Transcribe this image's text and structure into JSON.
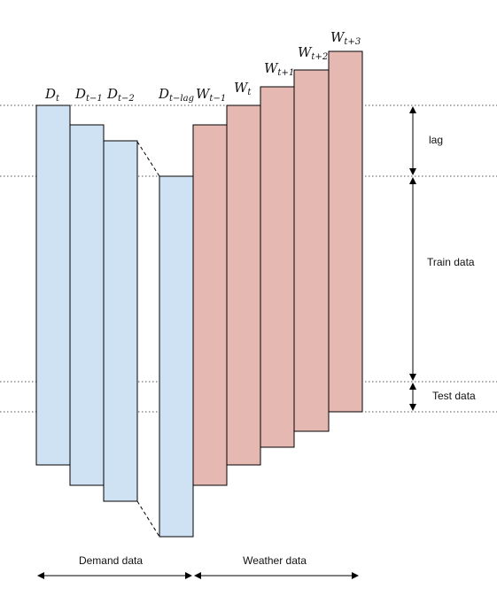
{
  "colors": {
    "demand_fill": "#cfe2f3",
    "weather_fill": "#e6b8b2",
    "stroke": "#000000"
  },
  "demand_bars": [
    {
      "base": "D",
      "sub": "t"
    },
    {
      "base": "D",
      "sub": "t−1"
    },
    {
      "base": "D",
      "sub": "t−2"
    },
    {
      "base": "D",
      "sub": "t−lag"
    }
  ],
  "weather_bars": [
    {
      "base": "W",
      "sub": "t−1"
    },
    {
      "base": "W",
      "sub": "t"
    },
    {
      "base": "W",
      "sub": "t+1"
    },
    {
      "base": "W",
      "sub": "t+2"
    },
    {
      "base": "W",
      "sub": "t+3"
    }
  ],
  "bracket_labels": {
    "lag": "lag",
    "train": "Train data",
    "test": "Test data"
  },
  "axis_labels": {
    "demand": "Demand data",
    "weather": "Weather data"
  }
}
